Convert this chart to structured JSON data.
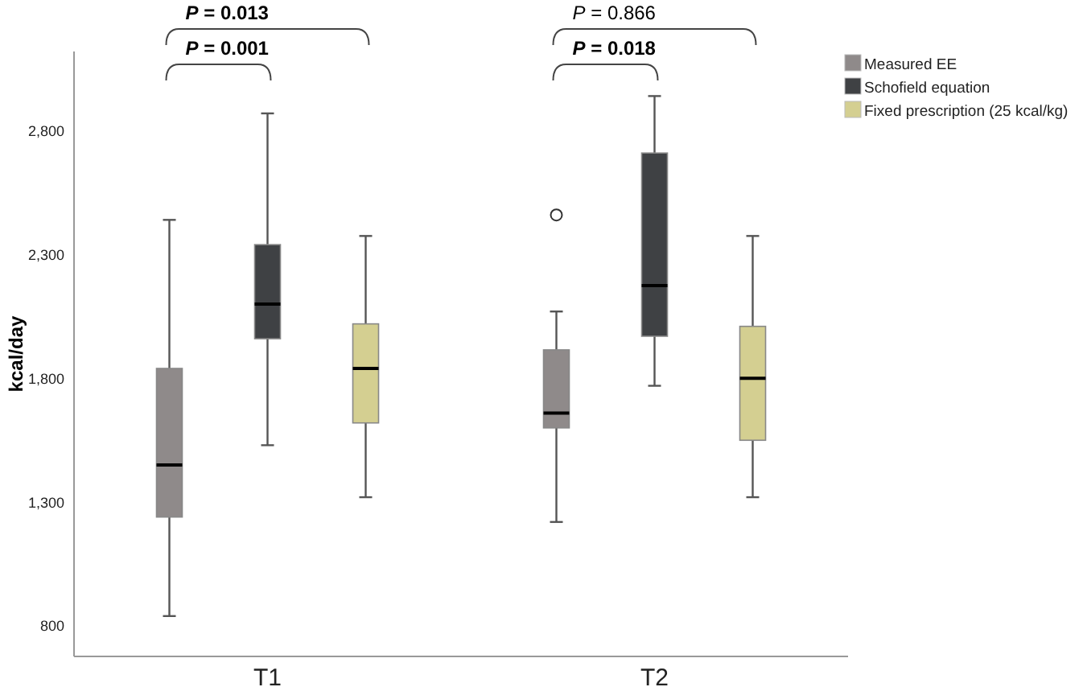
{
  "chart_data": {
    "type": "box",
    "categories": [
      "T1",
      "T2"
    ],
    "ylabel": "kcal/day",
    "ylim": [
      677,
      3120
    ],
    "yticks": [
      800,
      {
        "value": 1300,
        "label": "1,300"
      },
      {
        "value": 1800,
        "label": "1,800"
      },
      {
        "value": 2300,
        "label": "2,300"
      },
      {
        "value": 2800,
        "label": "2,800"
      }
    ],
    "legend": "top right",
    "series": [
      {
        "name": "Measured EE",
        "color": "#8f8a8a",
        "boxes": [
          {
            "low": 840,
            "q1": 1240,
            "median": 1450,
            "q3": 1840,
            "high": 2440
          },
          {
            "low": 1220,
            "q1": 1600,
            "median": 1660,
            "q3": 1915,
            "high": 2070,
            "outliers": [
              2460
            ]
          }
        ]
      },
      {
        "name": "Schofield equation",
        "color": "#3f4144",
        "boxes": [
          {
            "low": 1530,
            "q1": 1960,
            "median": 2100,
            "q3": 2340,
            "high": 2870
          },
          {
            "low": 1770,
            "q1": 1970,
            "median": 2175,
            "q3": 2710,
            "high": 2940
          }
        ]
      },
      {
        "name": "Fixed prescription (25 kcal/kg)",
        "color": "#d4cf91",
        "boxes": [
          {
            "low": 1320,
            "q1": 1620,
            "median": 1840,
            "q3": 2020,
            "high": 2375
          },
          {
            "low": 1320,
            "q1": 1550,
            "median": 1800,
            "q3": 2010,
            "high": 2375
          }
        ]
      }
    ],
    "annotations": [
      "P = 0.013",
      "P = 0.001",
      "P = 0.866",
      "P = 0.018"
    ]
  }
}
